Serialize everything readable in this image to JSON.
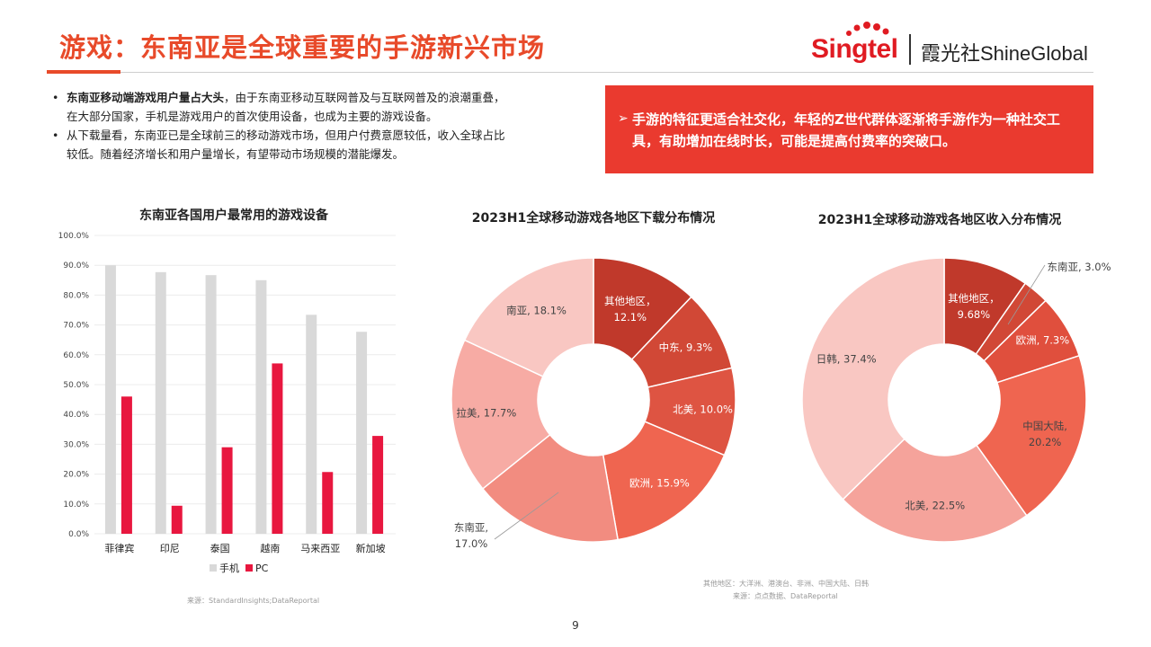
{
  "header": {
    "title": "游戏：东南亚是全球重要的手游新兴市场",
    "logo_singtel": "Singtel",
    "logo_shineglobal": "霞光社ShineGlobal"
  },
  "bullets": [
    {
      "bold": "东南亚移动端游戏用户量占大头",
      "text": "，由于东南亚移动互联网普及与互联网普及的浪潮重叠，",
      "text2": "在大部分国家，手机是游戏用户的首次使用设备，也成为主要的游戏设备。"
    },
    {
      "bold": "",
      "text": "从下载量看，东南亚已是全球前三的移动游戏市场，但用户付费意愿较低，收入全球占比",
      "text2": "较低。随着经济增长和用户量增长，有望带动市场规模的潜能爆发。"
    }
  ],
  "callout": {
    "text": "手游的特征更适合社交化，年轻的Z世代群体逐渐将手游作为一种社交工具，有助增加在线时长，可能是提高付费率的突破口。"
  },
  "colors": {
    "accent": "#e84a2a",
    "phone": "#d9d9d9",
    "pc": "#e8173f",
    "callout": "#ea3a2f"
  },
  "chart_data": [
    {
      "type": "bar",
      "title": "东南亚各国用户最常用的游戏设备",
      "categories": [
        "菲律宾",
        "印尼",
        "泰国",
        "越南",
        "马来西亚",
        "新加坡"
      ],
      "series": [
        {
          "name": "手机",
          "values": [
            90.0,
            87.7,
            86.7,
            85.0,
            73.4,
            67.7
          ]
        },
        {
          "name": "PC",
          "values": [
            46.0,
            9.4,
            29.0,
            57.1,
            20.7,
            32.8
          ]
        }
      ],
      "ylim": [
        0,
        100
      ],
      "yticks": [
        "0.0%",
        "10.0%",
        "20.0%",
        "30.0%",
        "40.0%",
        "50.0%",
        "60.0%",
        "70.0%",
        "80.0%",
        "90.0%",
        "100.0%"
      ],
      "source": "来源：StandardInsights;DataReportal"
    },
    {
      "type": "pie",
      "title": "2023H1全球移动游戏各地区下载分布情况",
      "slices": [
        {
          "label": "其他地区，",
          "label2": "12.1%",
          "value": 12.1,
          "color": "#c0392b"
        },
        {
          "label": "中东, 9.3%",
          "label2": "",
          "value": 9.3,
          "color": "#d14836"
        },
        {
          "label": "北美, 10.0%",
          "label2": "",
          "value": 10.0,
          "color": "#de5442"
        },
        {
          "label": "欧洲, 15.9%",
          "label2": "",
          "value": 15.9,
          "color": "#ef6550"
        },
        {
          "label": "东南亚,",
          "label2": "17.0%",
          "value": 17.0,
          "color": "#f28c80"
        },
        {
          "label": "拉美, 17.7%",
          "label2": "",
          "value": 17.7,
          "color": "#f7aba4"
        },
        {
          "label": "南亚, 18.1%",
          "label2": "",
          "value": 18.1,
          "color": "#f9c7c2"
        }
      ],
      "note": "其他地区：大洋洲、港澳台、非洲、中国大陆、日韩",
      "source": "来源：点点数据、DataReportal"
    },
    {
      "type": "pie",
      "title": "2023H1全球移动游戏各地区收入分布情况",
      "slices": [
        {
          "label": "其他地区，",
          "label2": "9.68%",
          "value": 9.68,
          "color": "#c0392b"
        },
        {
          "label": "东南亚, 3.0%",
          "label2": "",
          "value": 3.0,
          "color": "#d14836"
        },
        {
          "label": "欧洲, 7.3%",
          "label2": "",
          "value": 7.3,
          "color": "#e04f3d"
        },
        {
          "label": "中国大陆,",
          "label2": "20.2%",
          "value": 20.2,
          "color": "#ef6550"
        },
        {
          "label": "北美, 22.5%",
          "label2": "",
          "value": 22.5,
          "color": "#f5a39b"
        },
        {
          "label": "日韩, 37.4%",
          "label2": "",
          "value": 37.4,
          "color": "#f9c7c2"
        }
      ]
    }
  ],
  "page_number": "9"
}
